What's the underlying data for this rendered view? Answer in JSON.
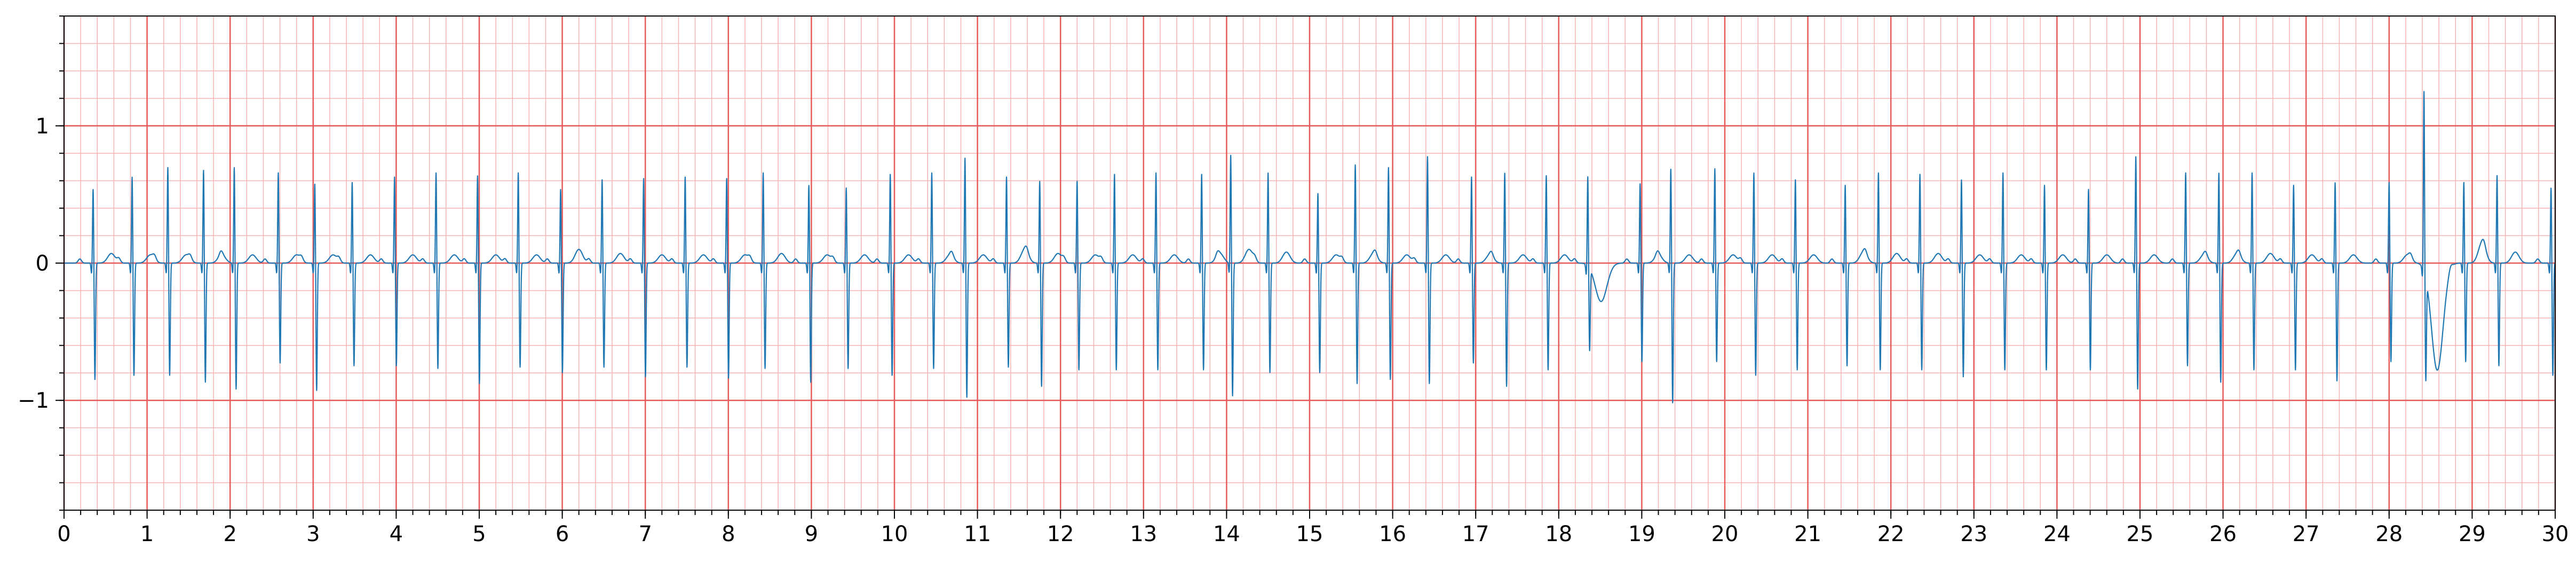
{
  "chart_data": {
    "type": "line",
    "title": "",
    "xlabel": "",
    "ylabel": "",
    "xlim": [
      0,
      30
    ],
    "ylim": [
      -1.8,
      1.8
    ],
    "grid": {
      "major": true,
      "minor": true,
      "major_x_step": 1,
      "major_y_step": 1,
      "minor_x_step": 0.2,
      "minor_y_step": 0.2,
      "major_color": "#e85a5a",
      "minor_color": "#f7b3b3"
    },
    "x_ticks": [
      {
        "value": 0,
        "label": "0"
      },
      {
        "value": 1,
        "label": "1"
      },
      {
        "value": 2,
        "label": "2"
      },
      {
        "value": 3,
        "label": "3"
      },
      {
        "value": 4,
        "label": "4"
      },
      {
        "value": 5,
        "label": "5"
      },
      {
        "value": 6,
        "label": "6"
      },
      {
        "value": 7,
        "label": "7"
      },
      {
        "value": 8,
        "label": "8"
      },
      {
        "value": 9,
        "label": "9"
      },
      {
        "value": 10,
        "label": "10"
      },
      {
        "value": 11,
        "label": "11"
      },
      {
        "value": 12,
        "label": "12"
      },
      {
        "value": 13,
        "label": "13"
      },
      {
        "value": 14,
        "label": "14"
      },
      {
        "value": 15,
        "label": "15"
      },
      {
        "value": 16,
        "label": "16"
      },
      {
        "value": 17,
        "label": "17"
      },
      {
        "value": 18,
        "label": "18"
      },
      {
        "value": 19,
        "label": "19"
      },
      {
        "value": 20,
        "label": "20"
      },
      {
        "value": 21,
        "label": "21"
      },
      {
        "value": 22,
        "label": "22"
      },
      {
        "value": 23,
        "label": "23"
      },
      {
        "value": 24,
        "label": "24"
      },
      {
        "value": 25,
        "label": "25"
      },
      {
        "value": 26,
        "label": "26"
      },
      {
        "value": 27,
        "label": "27"
      },
      {
        "value": 28,
        "label": "28"
      },
      {
        "value": 29,
        "label": "29"
      },
      {
        "value": 30,
        "label": "30"
      }
    ],
    "y_ticks": [
      {
        "value": -1,
        "label": "−1"
      },
      {
        "value": 0,
        "label": "0"
      },
      {
        "value": 1,
        "label": "1"
      }
    ],
    "series": [
      {
        "color": "#1f77b4",
        "beats": [
          {
            "t": 0.35,
            "r": 0.55,
            "s": -0.85,
            "tw": 0.07
          },
          {
            "t": 0.82,
            "r": 0.64,
            "s": -0.82,
            "tw": 0.06
          },
          {
            "t": 1.25,
            "r": 0.71,
            "s": -0.82,
            "tw": 0.06
          },
          {
            "t": 1.68,
            "r": 0.69,
            "s": -0.87,
            "tw": 0.06
          },
          {
            "t": 2.05,
            "r": 0.71,
            "s": -0.92,
            "tw": 0.06
          },
          {
            "t": 2.58,
            "r": 0.67,
            "s": -0.73,
            "tw": 0.06
          },
          {
            "t": 3.02,
            "r": 0.59,
            "s": -0.93,
            "tw": 0.06
          },
          {
            "t": 3.47,
            "r": 0.6,
            "s": -0.75,
            "tw": 0.06
          },
          {
            "t": 3.98,
            "r": 0.64,
            "s": -0.75,
            "tw": 0.06
          },
          {
            "t": 4.48,
            "r": 0.67,
            "s": -0.77,
            "tw": 0.06
          },
          {
            "t": 4.98,
            "r": 0.65,
            "s": -0.88,
            "tw": 0.06
          },
          {
            "t": 5.47,
            "r": 0.67,
            "s": -0.76,
            "tw": 0.06
          },
          {
            "t": 5.98,
            "r": 0.55,
            "s": -0.8,
            "tw": 0.1
          },
          {
            "t": 6.48,
            "r": 0.62,
            "s": -0.76,
            "tw": 0.07
          },
          {
            "t": 6.98,
            "r": 0.63,
            "s": -0.83,
            "tw": 0.06
          },
          {
            "t": 7.48,
            "r": 0.64,
            "s": -0.76,
            "tw": 0.06
          },
          {
            "t": 7.98,
            "r": 0.63,
            "s": -0.84,
            "tw": 0.06
          },
          {
            "t": 8.42,
            "r": 0.67,
            "s": -0.77,
            "tw": 0.07
          },
          {
            "t": 8.97,
            "r": 0.58,
            "s": -0.87,
            "tw": 0.06
          },
          {
            "t": 9.42,
            "r": 0.56,
            "s": -0.77,
            "tw": 0.06
          },
          {
            "t": 9.95,
            "r": 0.66,
            "s": -0.82,
            "tw": 0.06
          },
          {
            "t": 10.45,
            "r": 0.67,
            "s": -0.77,
            "tw": 0.06
          },
          {
            "t": 10.85,
            "r": 0.78,
            "s": -0.98,
            "tw": 0.06
          },
          {
            "t": 11.35,
            "r": 0.64,
            "s": -0.76,
            "tw": 0.1
          },
          {
            "t": 11.75,
            "r": 0.61,
            "s": -0.9,
            "tw": 0.07
          },
          {
            "t": 12.2,
            "r": 0.61,
            "s": -0.78,
            "tw": 0.06
          },
          {
            "t": 12.65,
            "r": 0.66,
            "s": -0.78,
            "tw": 0.06
          },
          {
            "t": 13.15,
            "r": 0.67,
            "s": -0.78,
            "tw": 0.06
          },
          {
            "t": 13.7,
            "r": 0.66,
            "s": -0.78,
            "tw": 0.07
          },
          {
            "t": 14.05,
            "r": 0.8,
            "s": -0.97,
            "tw": 0.1
          },
          {
            "t": 14.5,
            "r": 0.67,
            "s": -0.8,
            "tw": 0.08
          },
          {
            "t": 15.1,
            "r": 0.52,
            "s": -0.8,
            "tw": 0.06
          },
          {
            "t": 15.55,
            "r": 0.73,
            "s": -0.88,
            "tw": 0.07
          },
          {
            "t": 15.95,
            "r": 0.71,
            "s": -0.85,
            "tw": 0.06
          },
          {
            "t": 16.42,
            "r": 0.79,
            "s": -0.88,
            "tw": 0.06
          },
          {
            "t": 16.95,
            "r": 0.64,
            "s": -0.73,
            "tw": 0.06
          },
          {
            "t": 17.35,
            "r": 0.67,
            "s": -0.9,
            "tw": 0.06
          },
          {
            "t": 17.85,
            "r": 0.65,
            "s": -0.78,
            "tw": 0.06
          },
          {
            "t": 18.35,
            "r": 0.66,
            "s": -0.6,
            "tw": -0.28
          },
          {
            "t": 18.98,
            "r": 0.59,
            "s": -0.72,
            "tw": 0.06
          },
          {
            "t": 19.35,
            "r": 0.7,
            "s": -1.02,
            "tw": 0.06
          },
          {
            "t": 19.88,
            "r": 0.7,
            "s": -0.72,
            "tw": 0.06
          },
          {
            "t": 20.35,
            "r": 0.67,
            "s": -0.82,
            "tw": 0.06
          },
          {
            "t": 20.85,
            "r": 0.62,
            "s": -0.78,
            "tw": 0.06
          },
          {
            "t": 21.45,
            "r": 0.58,
            "s": -0.75,
            "tw": 0.08
          },
          {
            "t": 21.85,
            "r": 0.67,
            "s": -0.78,
            "tw": 0.07
          },
          {
            "t": 22.35,
            "r": 0.66,
            "s": -0.78,
            "tw": 0.07
          },
          {
            "t": 22.85,
            "r": 0.62,
            "s": -0.83,
            "tw": 0.06
          },
          {
            "t": 23.35,
            "r": 0.67,
            "s": -0.78,
            "tw": 0.06
          },
          {
            "t": 23.85,
            "r": 0.58,
            "s": -0.78,
            "tw": 0.06
          },
          {
            "t": 24.38,
            "r": 0.55,
            "s": -0.78,
            "tw": 0.06
          },
          {
            "t": 24.95,
            "r": 0.79,
            "s": -0.92,
            "tw": 0.06
          },
          {
            "t": 25.55,
            "r": 0.67,
            "s": -0.75,
            "tw": 0.06
          },
          {
            "t": 25.95,
            "r": 0.67,
            "s": -0.87,
            "tw": 0.07
          },
          {
            "t": 26.35,
            "r": 0.67,
            "s": -0.78,
            "tw": 0.07
          },
          {
            "t": 26.85,
            "r": 0.58,
            "s": -0.78,
            "tw": 0.06
          },
          {
            "t": 27.35,
            "r": 0.6,
            "s": -0.86,
            "tw": 0.06
          },
          {
            "t": 28.0,
            "r": 0.6,
            "s": -0.72,
            "tw": 0.06
          },
          {
            "t": 28.42,
            "r": 1.32,
            "s": -0.75,
            "tw": -0.78
          },
          {
            "t": 28.9,
            "r": 0.6,
            "s": -0.72,
            "tw": 0.15
          },
          {
            "t": 29.3,
            "r": 0.65,
            "s": -0.75,
            "tw": 0.08
          },
          {
            "t": 29.95,
            "r": 0.56,
            "s": -0.82,
            "tw": 0.05
          }
        ]
      }
    ]
  }
}
